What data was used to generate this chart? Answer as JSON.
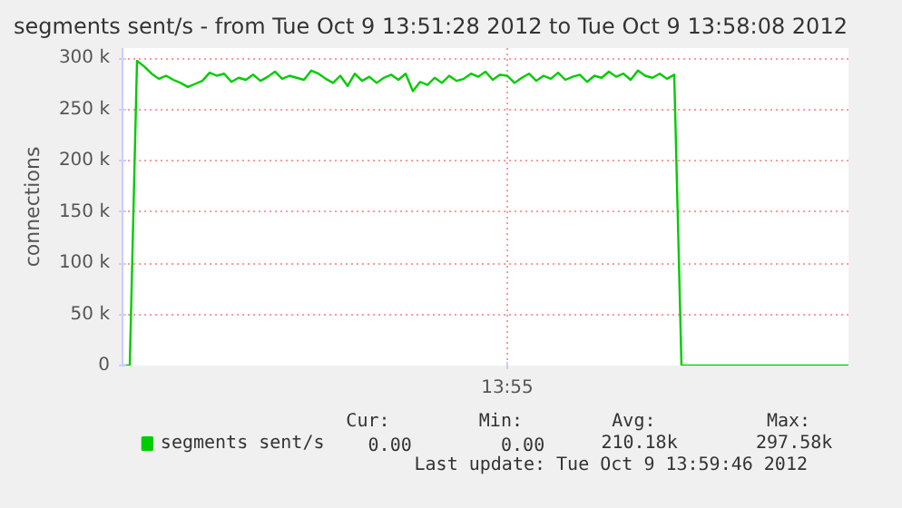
{
  "chart_data": {
    "type": "line",
    "title": "segments sent/s - from Tue Oct  9 13:51:28 2012 to Tue Oct  9 13:58:08 2012",
    "ylabel": "connections",
    "categories": [
      null,
      null,
      null,
      null,
      null,
      null,
      null,
      null,
      null,
      null,
      null,
      null,
      null,
      null,
      null,
      null,
      null,
      null,
      null,
      null,
      null,
      null,
      null,
      null,
      null,
      null,
      null,
      null,
      null,
      null,
      null,
      null,
      null,
      null,
      null,
      null,
      null,
      null,
      null,
      null,
      null,
      null,
      null,
      null,
      null,
      null,
      null,
      null,
      null,
      null,
      null,
      null,
      null,
      "13:55",
      null,
      null,
      null,
      null,
      null,
      null,
      null,
      null,
      null,
      null,
      null,
      null,
      null,
      null,
      null,
      null,
      null,
      null,
      null,
      null,
      null,
      null,
      null,
      null,
      null,
      null,
      null,
      null,
      null,
      null,
      null,
      null,
      null,
      null,
      null,
      null,
      null,
      null,
      null,
      null,
      null,
      null,
      null,
      null,
      null,
      null,
      null
    ],
    "series": [
      {
        "name": "segments sent/s",
        "color": "#00cc00",
        "values": [
          0,
          0,
          297580,
          292000,
          285000,
          280000,
          283000,
          279000,
          276000,
          272000,
          275000,
          278000,
          286000,
          283000,
          285000,
          277000,
          281000,
          279000,
          284000,
          278000,
          282000,
          287000,
          280000,
          283000,
          281000,
          279000,
          288000,
          285000,
          280000,
          276000,
          283000,
          273000,
          285000,
          278000,
          282000,
          276000,
          281000,
          284000,
          279000,
          285000,
          268000,
          277000,
          274000,
          281000,
          276000,
          283000,
          278000,
          280000,
          285000,
          282000,
          287000,
          279000,
          284000,
          283000,
          276000,
          281000,
          285000,
          278000,
          283000,
          280000,
          286000,
          279000,
          282000,
          284000,
          277000,
          283000,
          281000,
          287000,
          282000,
          285000,
          279000,
          288000,
          283000,
          281000,
          285000,
          280000,
          284000,
          0,
          0,
          0,
          0,
          0,
          0,
          0,
          0,
          0,
          0,
          0,
          0,
          0,
          0,
          0,
          0,
          0,
          0,
          0,
          0,
          0,
          0,
          0,
          0
        ]
      }
    ],
    "ylim": [
      0,
      310000
    ],
    "yticks": [
      {
        "value": 0,
        "label": "0"
      },
      {
        "value": 50000,
        "label": "50 k"
      },
      {
        "value": 100000,
        "label": "100 k"
      },
      {
        "value": 150000,
        "label": "150 k"
      },
      {
        "value": 200000,
        "label": "200 k"
      },
      {
        "value": 250000,
        "label": "250 k"
      },
      {
        "value": 300000,
        "label": "300 k"
      }
    ],
    "grid": true,
    "legend": "bottom",
    "annotations": [
      "Cur:",
      "Min:",
      "Avg:",
      "Max:",
      "0.00",
      "0.00",
      "210.18k",
      "297.58k",
      "Last update:  Tue Oct  9 13:59:46 2012"
    ]
  }
}
